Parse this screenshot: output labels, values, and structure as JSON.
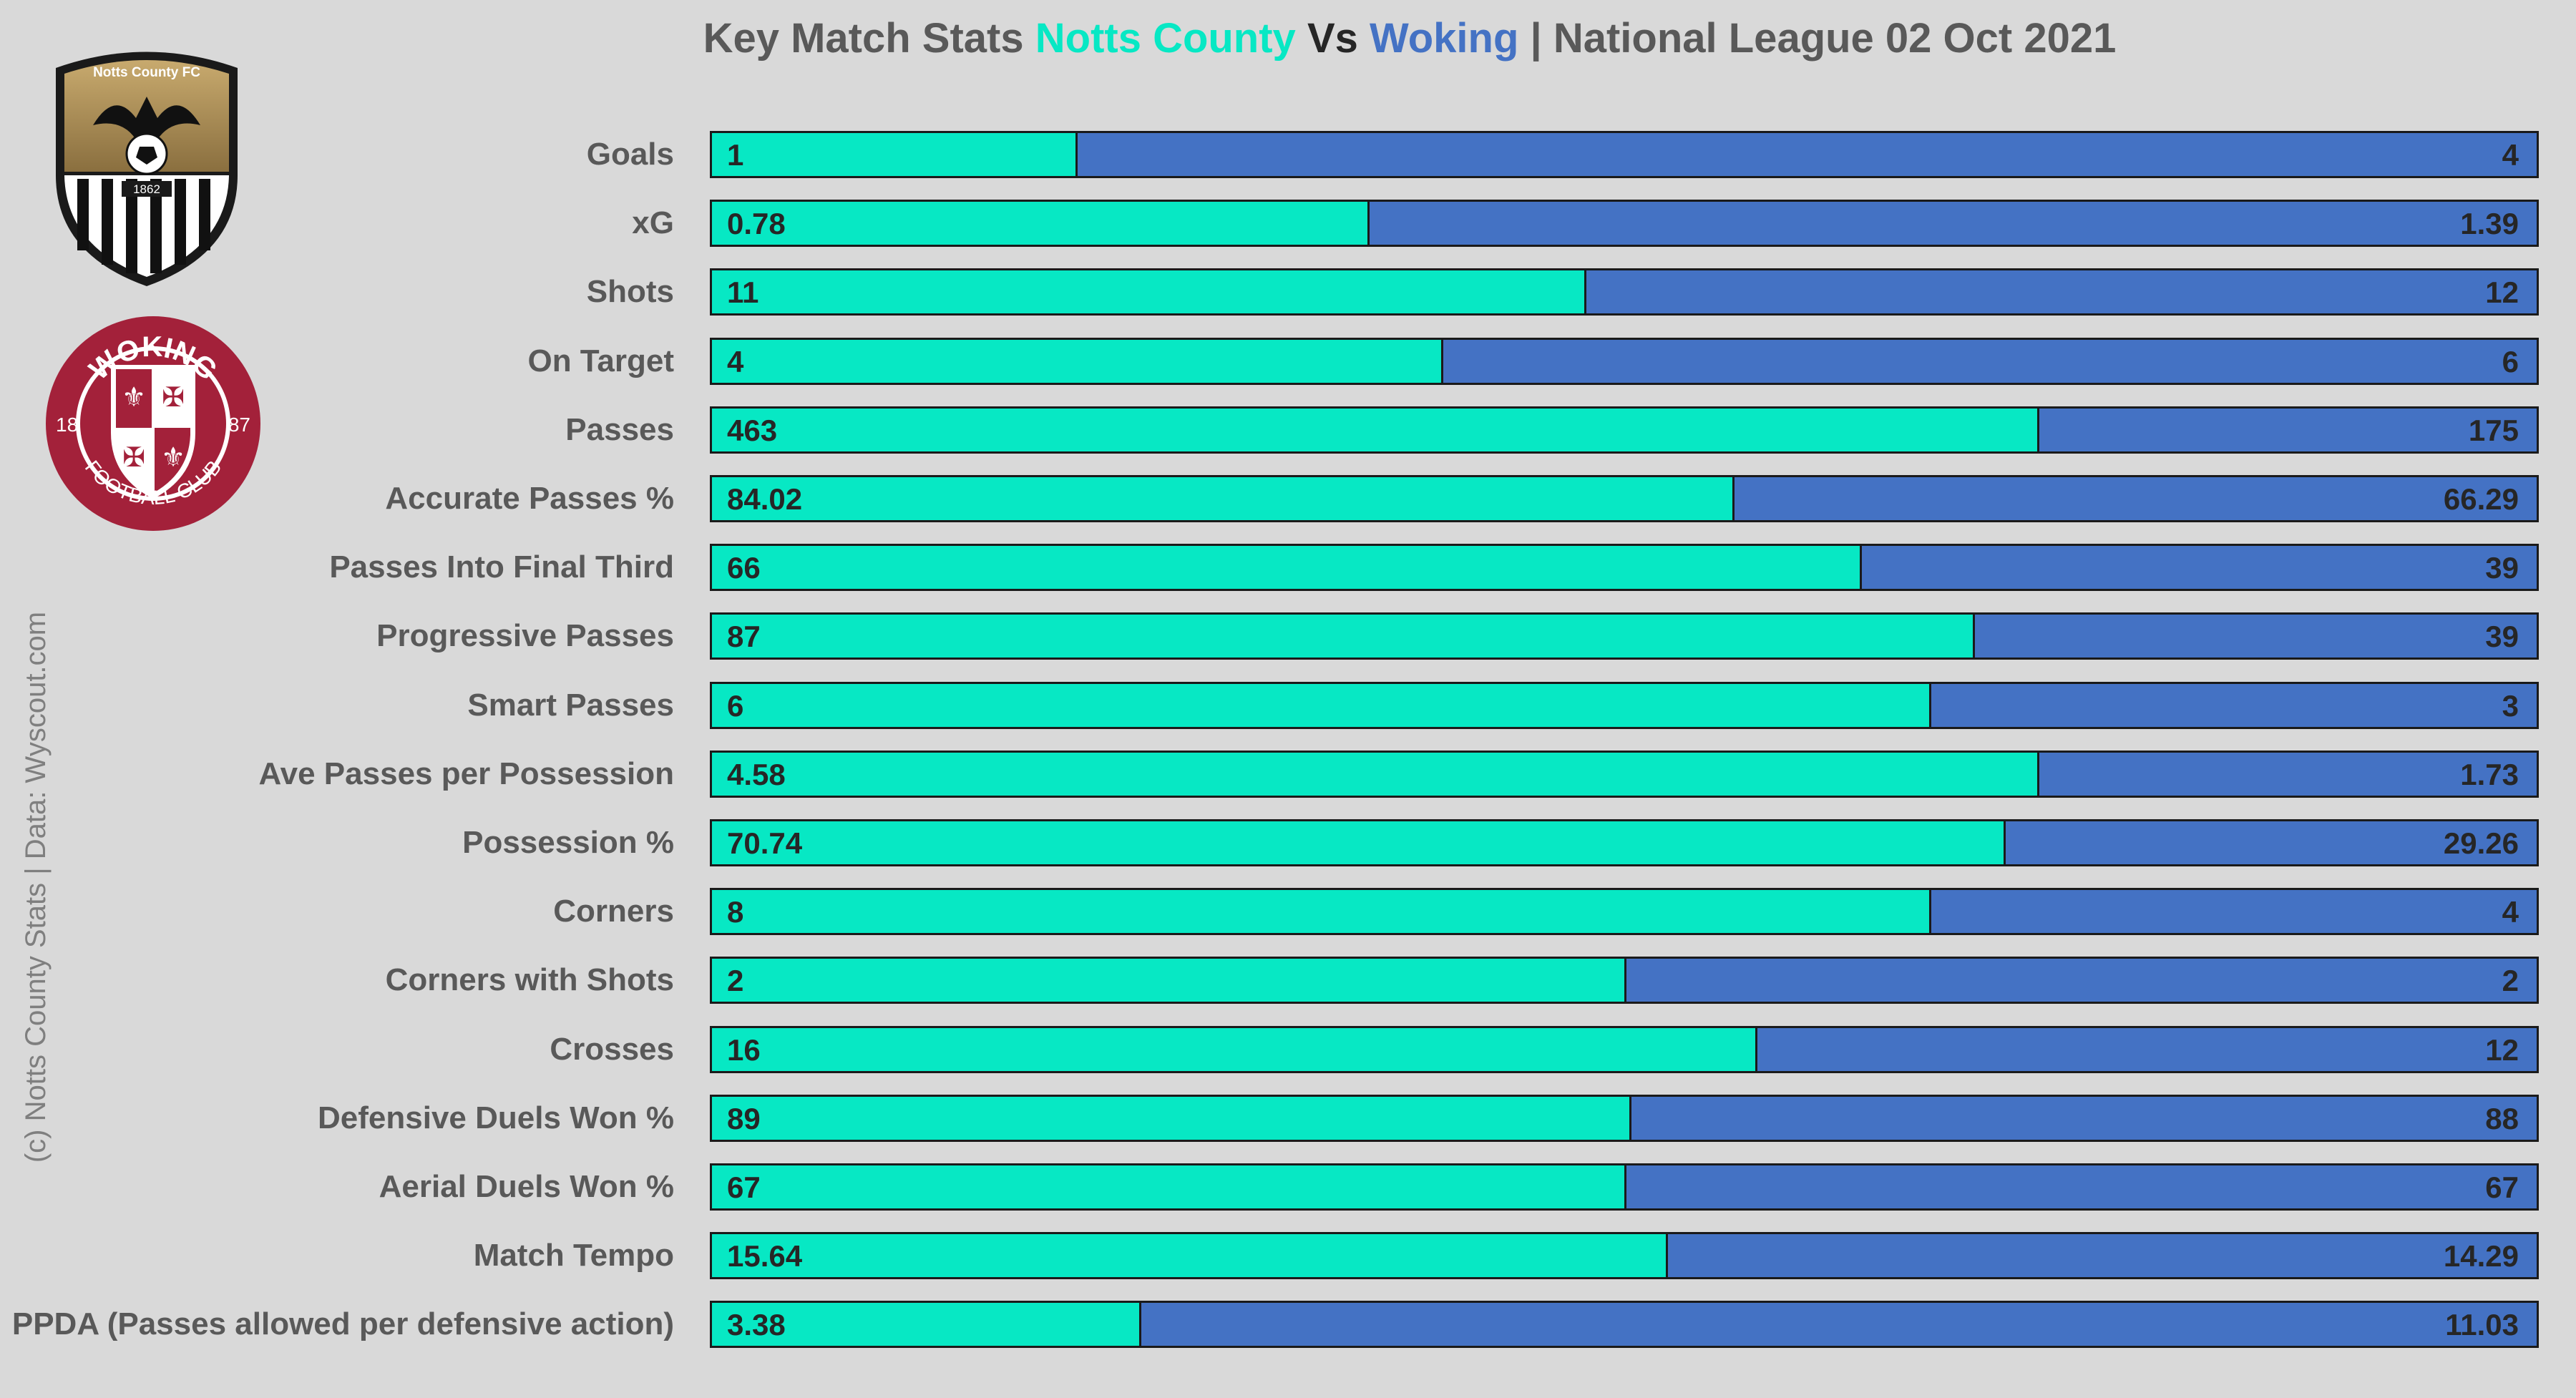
{
  "title": {
    "prefix": "Key Match Stats",
    "home": "Notts County",
    "vs": "Vs",
    "away": "Woking",
    "suffix": "| National League 02 Oct 2021"
  },
  "credit": "(c) Notts County Stats | Data: Wyscout.com",
  "colors": {
    "home": "#07e8c4",
    "away": "#4472c4",
    "background": "#d9d9d9"
  },
  "logos": {
    "home": {
      "icon": "notts-county-crest-icon",
      "club_name": "Notts County FC",
      "year": "1862"
    },
    "away": {
      "icon": "woking-crest-icon",
      "club_name": "WOKING",
      "sub": "FOOTBALL CLUB",
      "year_left": "18",
      "year_right": "87"
    }
  },
  "chart_data": {
    "type": "bar",
    "orientation": "horizontal-stacked-100",
    "categories": [
      "Goals",
      "xG",
      "Shots",
      "On Target",
      "Passes",
      "Accurate Passes %",
      "Passes Into Final Third",
      "Progressive Passes",
      "Smart Passes",
      "Ave Passes per Possession",
      "Possession %",
      "Corners",
      "Corners with Shots",
      "Crosses",
      "Defensive Duels Won %",
      "Aerial Duels Won %",
      "Match Tempo",
      "PPDA (Passes allowed per defensive action)"
    ],
    "series": [
      {
        "name": "Notts County",
        "values": [
          "1",
          "0.78",
          "11",
          "4",
          "463",
          "84.02",
          "66",
          "87",
          "6",
          "4.58",
          "70.74",
          "8",
          "2",
          "16",
          "89",
          "67",
          "15.64",
          "3.38"
        ]
      },
      {
        "name": "Woking",
        "values": [
          "4",
          "1.39",
          "12",
          "6",
          "175",
          "66.29",
          "39",
          "39",
          "3",
          "1.73",
          "29.26",
          "4",
          "2",
          "12",
          "88",
          "67",
          "14.29",
          "11.03"
        ]
      }
    ],
    "grid": false,
    "legend": "title"
  }
}
